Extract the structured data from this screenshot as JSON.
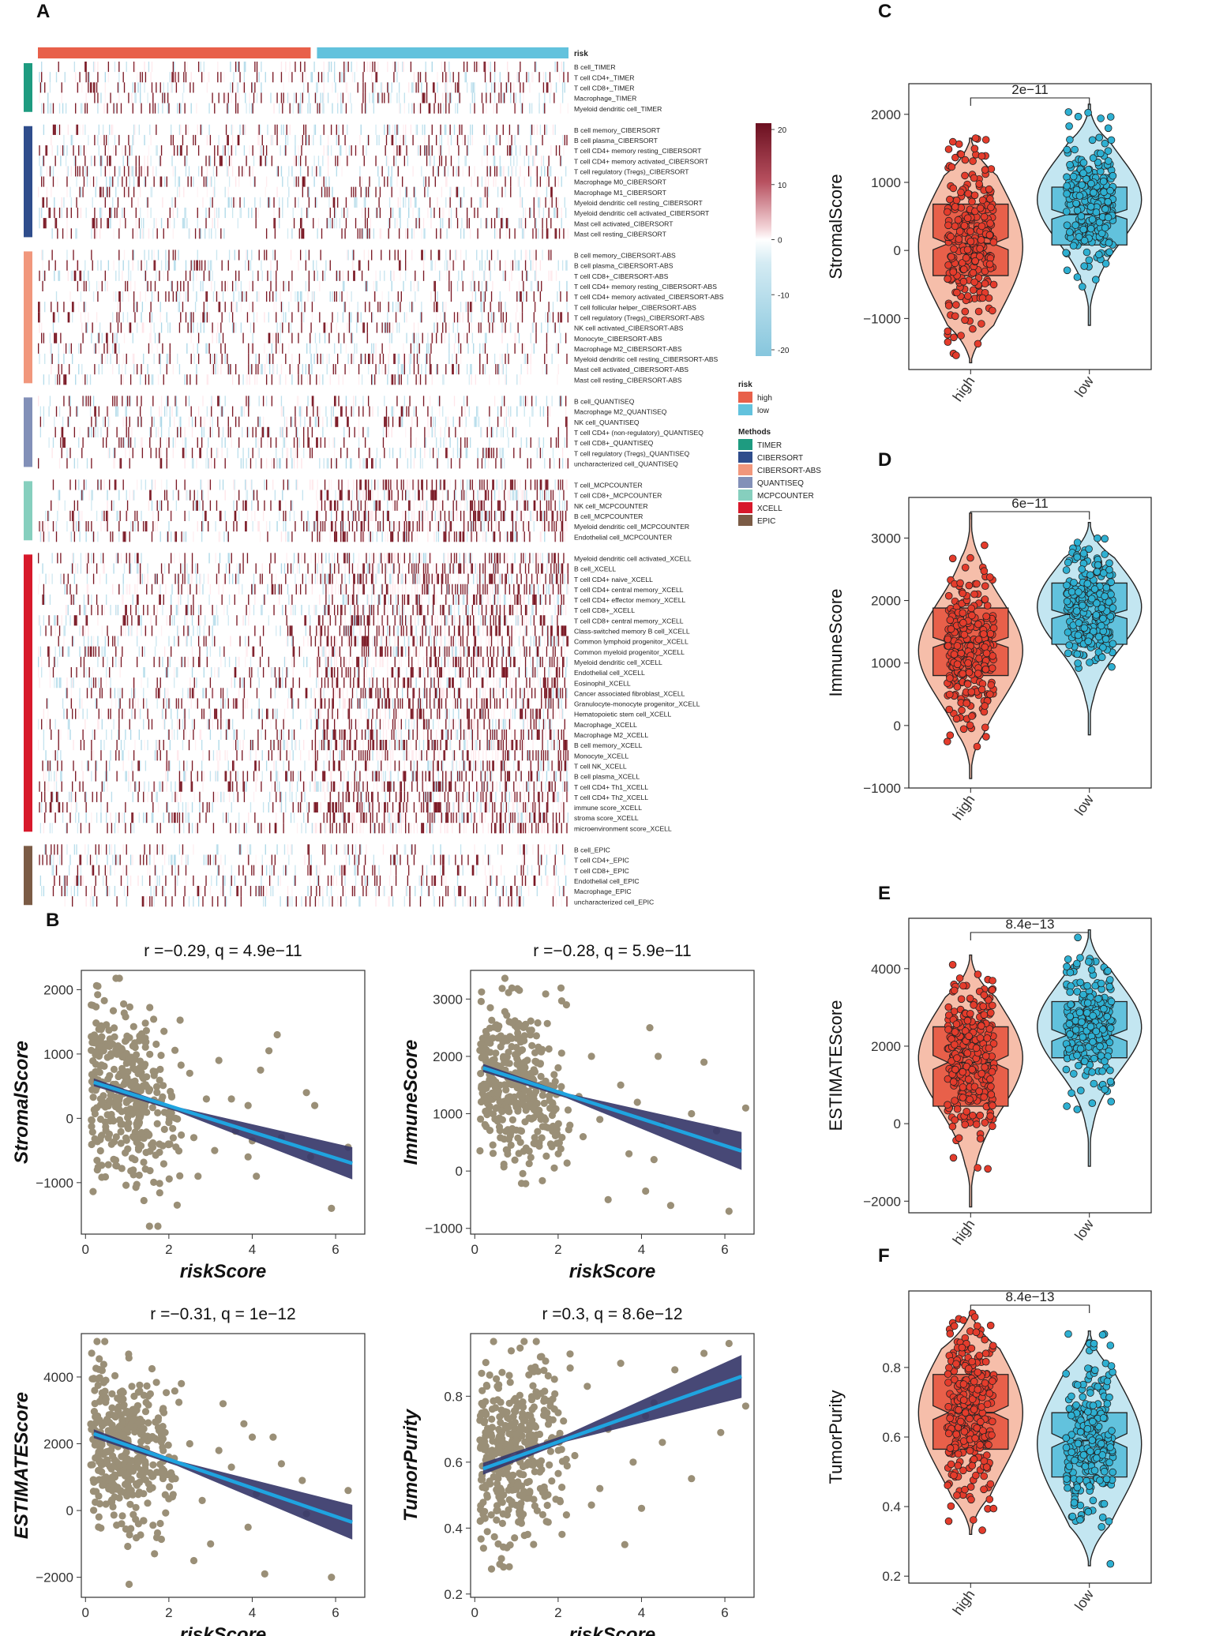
{
  "figure": {
    "panel_labels": [
      "A",
      "B",
      "C",
      "D",
      "E",
      "F"
    ]
  },
  "colors": {
    "high": "#e8604a",
    "high_light": "#f4b39b",
    "high_point": "#e43c2c",
    "low": "#62c2dd",
    "low_light": "#b9e2ee",
    "low_point": "#2eb0d2",
    "scatter_point": "#9a8f77",
    "fit_line": "#1fa4e0",
    "ci_band": "#37386a",
    "heat_high": "#7a1824",
    "heat_mid": "#ffffff",
    "heat_low": "#86c6dd"
  },
  "heatmap": {
    "risk_label": "risk",
    "n_high": 260,
    "n_low": 240,
    "groups": [
      {
        "method": "TIMER",
        "color": "#1e9b80",
        "rows": [
          "B cell_TIMER",
          "T cell CD4+_TIMER",
          "T cell CD8+_TIMER",
          "Macrophage_TIMER",
          "Myeloid dendritic cell_TIMER"
        ]
      },
      {
        "method": "CIBERSORT",
        "color": "#2f4d8c",
        "rows": [
          "B cell memory_CIBERSORT",
          "B cell plasma_CIBERSORT",
          "T cell CD4+ memory resting_CIBERSORT",
          "T cell CD4+ memory activated_CIBERSORT",
          "T cell regulatory (Tregs)_CIBERSORT",
          "Macrophage M0_CIBERSORT",
          "Macrophage M1_CIBERSORT",
          "Myeloid dendritic cell resting_CIBERSORT",
          "Myeloid dendritic cell activated_CIBERSORT",
          "Mast cell activated_CIBERSORT",
          "Mast cell resting_CIBERSORT"
        ]
      },
      {
        "method": "CIBERSORT-ABS",
        "color": "#f1977c",
        "rows": [
          "B cell memory_CIBERSORT-ABS",
          "B cell plasma_CIBERSORT-ABS",
          "T cell CD8+_CIBERSORT-ABS",
          "T cell CD4+ memory resting_CIBERSORT-ABS",
          "T cell CD4+ memory activated_CIBERSORT-ABS",
          "T cell follicular helper_CIBERSORT-ABS",
          "T cell regulatory (Tregs)_CIBERSORT-ABS",
          "NK cell activated_CIBERSORT-ABS",
          "Monocyte_CIBERSORT-ABS",
          "Macrophage M2_CIBERSORT-ABS",
          "Myeloid dendritic cell resting_CIBERSORT-ABS",
          "Mast cell activated_CIBERSORT-ABS",
          "Mast cell resting_CIBERSORT-ABS"
        ]
      },
      {
        "method": "QUANTISEQ",
        "color": "#8290b8",
        "rows": [
          "B cell_QUANTISEQ",
          "Macrophage M2_QUANTISEQ",
          "NK cell_QUANTISEQ",
          "T cell CD4+ (non-regulatory)_QUANTISEQ",
          "T cell CD8+_QUANTISEQ",
          "T cell regulatory (Tregs)_QUANTISEQ",
          "uncharacterized cell_QUANTISEQ"
        ]
      },
      {
        "method": "MCPCOUNTER",
        "color": "#86cfbe",
        "rows": [
          "T cell_MCPCOUNTER",
          "T cell CD8+_MCPCOUNTER",
          "NK cell_MCPCOUNTER",
          "B cell_MCPCOUNTER",
          "Myeloid dendritic cell_MCPCOUNTER",
          "Endothelial cell_MCPCOUNTER"
        ]
      },
      {
        "method": "XCELL",
        "color": "#d7192b",
        "rows": [
          "Myeloid dendritic cell activated_XCELL",
          "B cell_XCELL",
          "T cell CD4+ naive_XCELL",
          "T cell CD4+ central memory_XCELL",
          "T cell CD4+ effector memory_XCELL",
          "T cell CD8+_XCELL",
          "T cell CD8+ central memory_XCELL",
          "Class-switched memory B cell_XCELL",
          "Common lymphoid progenitor_XCELL",
          "Common myeloid progenitor_XCELL",
          "Myeloid dendritic cell_XCELL",
          "Endothelial cell_XCELL",
          "Eosinophil_XCELL",
          "Cancer associated fibroblast_XCELL",
          "Granulocyte-monocyte progenitor_XCELL",
          "Hematopoietic stem cell_XCELL",
          "Macrophage_XCELL",
          "Macrophage M2_XCELL",
          "B cell memory_XCELL",
          "Monocyte_XCELL",
          "T cell NK_XCELL",
          "B cell plasma_XCELL",
          "T cell CD4+ Th1_XCELL",
          "T cell CD4+ Th2_XCELL",
          "immune score_XCELL",
          "stroma score_XCELL",
          "microenvironment score_XCELL"
        ]
      },
      {
        "method": "EPIC",
        "color": "#7b5b45",
        "rows": [
          "B cell_EPIC",
          "T cell CD4+_EPIC",
          "T cell CD8+_EPIC",
          "Endothelial cell_EPIC",
          "Macrophage_EPIC",
          "uncharacterized cell_EPIC"
        ]
      }
    ],
    "colorbar": {
      "ticks": [
        "20",
        "10",
        "0",
        "-10",
        "-20"
      ],
      "min": -20,
      "max": 20
    },
    "legend": {
      "risk_title": "risk",
      "risk_items": [
        {
          "label": "high",
          "color": "#e8604a"
        },
        {
          "label": "low",
          "color": "#62c2dd"
        }
      ],
      "methods_title": "Methods",
      "method_items": [
        {
          "label": "TIMER",
          "color": "#1e9b80"
        },
        {
          "label": "CIBERSORT",
          "color": "#2f4d8c"
        },
        {
          "label": "CIBERSORT-ABS",
          "color": "#f1977c"
        },
        {
          "label": "QUANTISEQ",
          "color": "#8290b8"
        },
        {
          "label": "MCPCOUNTER",
          "color": "#86cfbe"
        },
        {
          "label": "XCELL",
          "color": "#d7192b"
        },
        {
          "label": "EPIC",
          "color": "#7b5b45"
        }
      ]
    }
  },
  "chart_data": [
    {
      "panel": "B",
      "type": "scatter",
      "title": "r =−0.29, q = 4.9e−11",
      "xlabel": "riskScore",
      "ylabel": "StromalScore",
      "xlim": [
        -0.1,
        6.7
      ],
      "ylim": [
        -1800,
        2300
      ],
      "xticks": [
        0,
        2,
        4,
        6
      ],
      "yticks": [
        -1000,
        0,
        1000,
        2000
      ],
      "ytick_labels": [
        "−1000",
        "0",
        "1000",
        "2000"
      ],
      "fit": {
        "x0": 0.2,
        "y0": 560,
        "x1": 6.4,
        "y1": -700,
        "ci_start": 60,
        "ci_end": 250
      },
      "cloud": {
        "x_center": 0.95,
        "x_sd": 0.65,
        "y_center": 450,
        "y_sd": 650,
        "n": 380
      },
      "outliers": [
        [
          2.0,
          50
        ],
        [
          2.2,
          -1350
        ],
        [
          2.5,
          700
        ],
        [
          2.9,
          300
        ],
        [
          3.1,
          -500
        ],
        [
          3.5,
          300
        ],
        [
          3.6,
          -200
        ],
        [
          3.9,
          200
        ],
        [
          3.9,
          -600
        ],
        [
          4.0,
          -350
        ],
        [
          4.1,
          -900
        ],
        [
          4.2,
          750
        ],
        [
          4.4,
          1050
        ],
        [
          4.6,
          1300
        ],
        [
          4.7,
          -300
        ],
        [
          5.3,
          400
        ],
        [
          5.4,
          -600
        ],
        [
          5.5,
          200
        ],
        [
          5.9,
          -1400
        ],
        [
          6.3,
          -450
        ],
        [
          2.7,
          -900
        ],
        [
          3.2,
          900
        ],
        [
          2.6,
          -300
        ]
      ]
    },
    {
      "panel": "B",
      "type": "scatter",
      "title": "r =−0.28, q = 5.9e−11",
      "xlabel": "riskScore",
      "ylabel": "ImmuneScore",
      "xlim": [
        -0.1,
        6.7
      ],
      "ylim": [
        -1100,
        3500
      ],
      "xticks": [
        0,
        2,
        4,
        6
      ],
      "yticks": [
        -1000,
        0,
        1000,
        2000,
        3000
      ],
      "ytick_labels": [
        "−1000",
        "0",
        "1000",
        "2000",
        "3000"
      ],
      "fit": {
        "x0": 0.2,
        "y0": 1800,
        "x1": 6.4,
        "y1": 350,
        "ci_start": 70,
        "ci_end": 330
      },
      "cloud": {
        "x_center": 0.95,
        "x_sd": 0.65,
        "y_center": 1500,
        "y_sd": 650,
        "n": 380
      },
      "outliers": [
        [
          2.0,
          1800
        ],
        [
          2.2,
          2900
        ],
        [
          2.5,
          1300
        ],
        [
          2.8,
          2000
        ],
        [
          3.0,
          900
        ],
        [
          3.2,
          -500
        ],
        [
          3.5,
          1500
        ],
        [
          3.7,
          300
        ],
        [
          3.9,
          1200
        ],
        [
          4.1,
          -350
        ],
        [
          4.2,
          2500
        ],
        [
          4.4,
          2000
        ],
        [
          4.5,
          800
        ],
        [
          4.7,
          -600
        ],
        [
          5.2,
          1000
        ],
        [
          5.5,
          1900
        ],
        [
          5.8,
          700
        ],
        [
          6.1,
          -700
        ],
        [
          6.5,
          1100
        ],
        [
          4.3,
          200
        ],
        [
          2.6,
          600
        ]
      ]
    },
    {
      "panel": "B",
      "type": "scatter",
      "title": "r =−0.31, q = 1e−12",
      "xlabel": "riskScore",
      "ylabel": "ESTIMATEScore",
      "xlim": [
        -0.1,
        6.7
      ],
      "ylim": [
        -2600,
        5300
      ],
      "xticks": [
        0,
        2,
        4,
        6
      ],
      "yticks": [
        -2000,
        0,
        2000,
        4000
      ],
      "ytick_labels": [
        "−2000",
        "0",
        "2000",
        "4000"
      ],
      "fit": {
        "x0": 0.2,
        "y0": 2300,
        "x1": 6.4,
        "y1": -350,
        "ci_start": 130,
        "ci_end": 520
      },
      "cloud": {
        "x_center": 0.95,
        "x_sd": 0.65,
        "y_center": 1950,
        "y_sd": 1200,
        "n": 380
      },
      "outliers": [
        [
          2.0,
          1600
        ],
        [
          2.3,
          3800
        ],
        [
          2.5,
          2000
        ],
        [
          2.8,
          300
        ],
        [
          3.0,
          -1000
        ],
        [
          3.2,
          1800
        ],
        [
          3.5,
          1300
        ],
        [
          3.8,
          2600
        ],
        [
          3.9,
          -500
        ],
        [
          4.0,
          2200
        ],
        [
          4.1,
          500
        ],
        [
          4.3,
          -1900
        ],
        [
          4.5,
          2200
        ],
        [
          4.7,
          1400
        ],
        [
          5.2,
          900
        ],
        [
          5.3,
          -100
        ],
        [
          5.9,
          -2000
        ],
        [
          6.3,
          600
        ],
        [
          2.6,
          -1500
        ],
        [
          3.3,
          3200
        ]
      ]
    },
    {
      "panel": "B",
      "type": "scatter",
      "title": "r =0.3, q = 8.6e−12",
      "xlabel": "riskScore",
      "ylabel": "TumorPurity",
      "xlim": [
        -0.1,
        6.7
      ],
      "ylim": [
        0.19,
        0.99
      ],
      "xticks": [
        0,
        2,
        4,
        6
      ],
      "yticks": [
        0.2,
        0.4,
        0.6,
        0.8
      ],
      "ytick_labels": [
        "0.2",
        "0.4",
        "0.6",
        "0.8"
      ],
      "fit": {
        "x0": 0.2,
        "y0": 0.58,
        "x1": 6.4,
        "y1": 0.86,
        "ci_start": 0.018,
        "ci_end": 0.065
      },
      "cloud": {
        "x_center": 0.95,
        "x_sd": 0.65,
        "y_center": 0.63,
        "y_sd": 0.14,
        "n": 380
      },
      "outliers": [
        [
          2.0,
          0.75
        ],
        [
          2.2,
          0.44
        ],
        [
          2.4,
          0.62
        ],
        [
          2.7,
          0.83
        ],
        [
          3.0,
          0.52
        ],
        [
          3.2,
          0.7
        ],
        [
          3.5,
          0.9
        ],
        [
          3.6,
          0.35
        ],
        [
          3.8,
          0.6
        ],
        [
          4.0,
          0.46
        ],
        [
          4.1,
          0.74
        ],
        [
          4.3,
          0.78
        ],
        [
          4.5,
          0.66
        ],
        [
          4.8,
          0.88
        ],
        [
          5.2,
          0.55
        ],
        [
          5.5,
          0.93
        ],
        [
          5.9,
          0.69
        ],
        [
          6.1,
          0.96
        ],
        [
          6.5,
          0.77
        ],
        [
          2.8,
          0.47
        ]
      ]
    },
    {
      "panel": "C",
      "type": "violin",
      "ylabel": "StromalScore",
      "categories": [
        "high",
        "low"
      ],
      "pvalue": "2e−11",
      "ylim": [
        -1750,
        2450
      ],
      "yticks": [
        -1000,
        0,
        1000,
        2000
      ],
      "ytick_labels": [
        "−1000",
        "0",
        "1000",
        "2000"
      ],
      "groups": [
        {
          "name": "high",
          "q1": -370,
          "median": 100,
          "q3": 680,
          "notch": 90,
          "range": [
            -1650,
            1650
          ],
          "mode": 50,
          "spread": 900,
          "n": 260
        },
        {
          "name": "low",
          "q1": 80,
          "median": 530,
          "q3": 930,
          "notch": 70,
          "range": [
            -1100,
            2150
          ],
          "mode": 750,
          "spread": 620,
          "n": 240
        }
      ]
    },
    {
      "panel": "D",
      "type": "violin",
      "ylabel": "ImmuneScore",
      "categories": [
        "high",
        "low"
      ],
      "pvalue": "6e−11",
      "ylim": [
        -1000,
        3650
      ],
      "yticks": [
        -1000,
        0,
        1000,
        2000,
        3000
      ],
      "ytick_labels": [
        "−1000",
        "0",
        "1000",
        "2000",
        "3000"
      ],
      "groups": [
        {
          "name": "high",
          "q1": 800,
          "median": 1330,
          "q3": 1880,
          "notch": 80,
          "range": [
            -850,
            3400
          ],
          "mode": 1200,
          "spread": 800,
          "n": 260
        },
        {
          "name": "low",
          "q1": 1300,
          "median": 1780,
          "q3": 2280,
          "notch": 70,
          "range": [
            -150,
            3250
          ],
          "mode": 1900,
          "spread": 650,
          "n": 240
        }
      ]
    },
    {
      "panel": "E",
      "type": "violin",
      "ylabel": "ESTIMATEScore",
      "categories": [
        "high",
        "low"
      ],
      "pvalue": "8.4e−13",
      "ylim": [
        -2300,
        5300
      ],
      "yticks": [
        -2000,
        0,
        2000,
        4000
      ],
      "ytick_labels": [
        "−2000",
        "0",
        "2000",
        "4000"
      ],
      "groups": [
        {
          "name": "high",
          "q1": 450,
          "median": 1580,
          "q3": 2500,
          "notch": 180,
          "range": [
            -2150,
            4350
          ],
          "mode": 1700,
          "spread": 1300,
          "n": 260
        },
        {
          "name": "low",
          "q1": 1700,
          "median": 2280,
          "q3": 3150,
          "notch": 150,
          "range": [
            -1100,
            5000
          ],
          "mode": 2500,
          "spread": 1100,
          "n": 240
        }
      ]
    },
    {
      "panel": "F",
      "type": "violin",
      "ylabel": "TumorPurity",
      "categories": [
        "high",
        "low"
      ],
      "pvalue": "8.4e−13",
      "ylim": [
        0.18,
        1.02
      ],
      "yticks": [
        0.2,
        0.4,
        0.6,
        0.8
      ],
      "ytick_labels": [
        "0.2",
        "0.4",
        "0.6",
        "0.8"
      ],
      "groups": [
        {
          "name": "high",
          "q1": 0.565,
          "median": 0.67,
          "q3": 0.78,
          "notch": 0.02,
          "range": [
            0.32,
            0.96
          ],
          "mode": 0.67,
          "spread": 0.17,
          "n": 260
        },
        {
          "name": "low",
          "q1": 0.485,
          "median": 0.59,
          "q3": 0.67,
          "notch": 0.02,
          "range": [
            0.23,
            0.905
          ],
          "mode": 0.58,
          "spread": 0.17,
          "n": 240
        }
      ]
    }
  ]
}
